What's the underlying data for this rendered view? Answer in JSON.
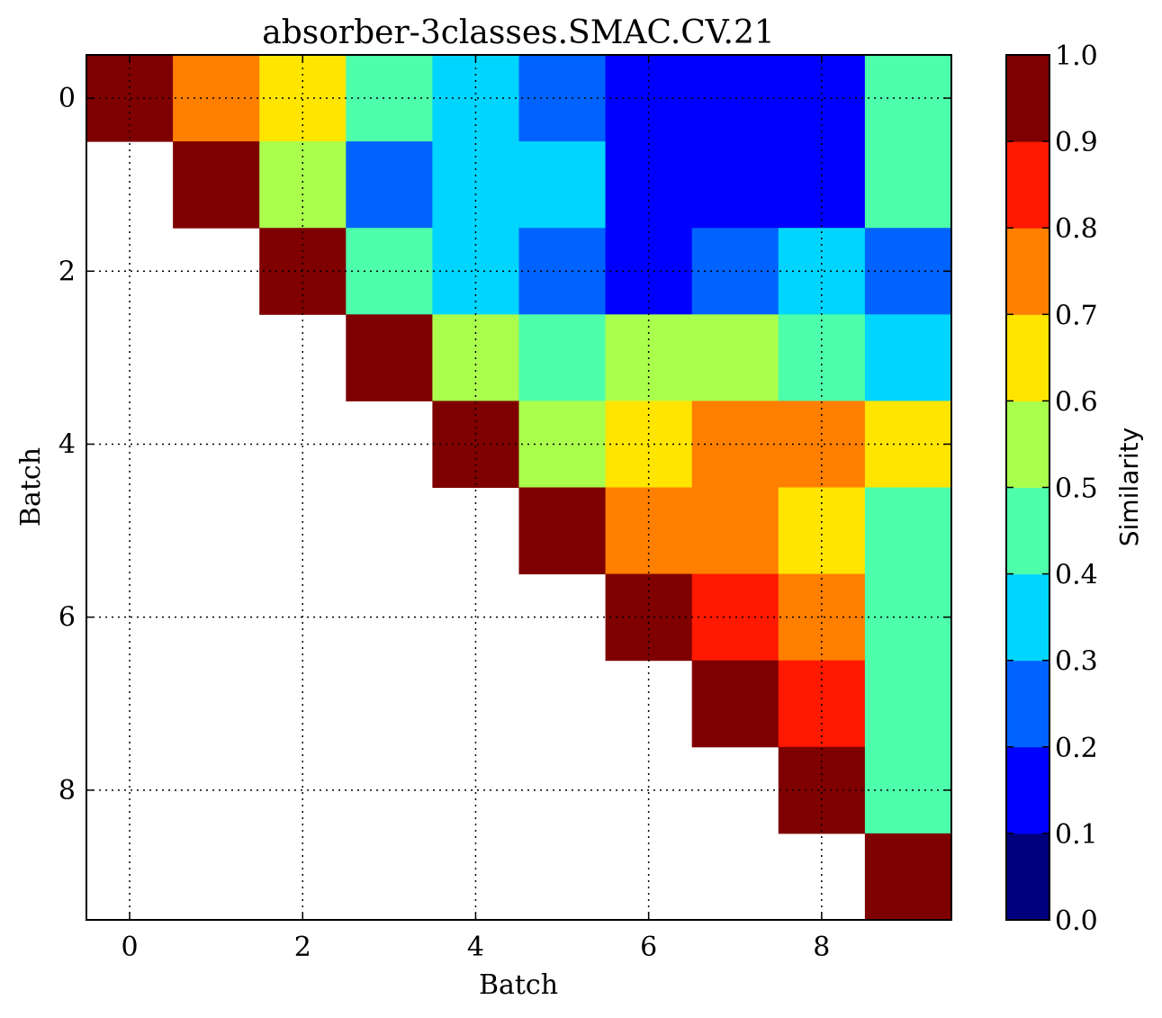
{
  "chart_data": {
    "type": "heatmap",
    "title": "absorber-3classes.SMAC.CV.21",
    "xlabel": "Batch",
    "ylabel": "Batch",
    "colorbar_label": "Similarity",
    "x_ticks": [
      "0",
      "2",
      "4",
      "6",
      "8"
    ],
    "y_ticks": [
      "0",
      "2",
      "4",
      "6",
      "8"
    ],
    "colorbar_ticks": [
      "0.0",
      "0.1",
      "0.2",
      "0.3",
      "0.4",
      "0.5",
      "0.6",
      "0.7",
      "0.8",
      "0.9",
      "1.0"
    ],
    "value_range": [
      0.0,
      1.0
    ],
    "grid": true,
    "colormap": "jet (10 discrete levels)",
    "colorbar_colors": [
      "#00007f",
      "#0000ff",
      "#0063ff",
      "#00d5ff",
      "#4dffaa",
      "#aaff4d",
      "#ffe500",
      "#ff7f00",
      "#ff1900",
      "#7f0000"
    ],
    "matrix": [
      [
        0.95,
        0.75,
        0.65,
        0.45,
        0.35,
        0.25,
        0.15,
        0.15,
        0.15,
        0.45
      ],
      [
        null,
        0.95,
        0.55,
        0.25,
        0.35,
        0.35,
        0.15,
        0.15,
        0.15,
        0.45
      ],
      [
        null,
        null,
        0.95,
        0.45,
        0.35,
        0.25,
        0.15,
        0.25,
        0.35,
        0.25
      ],
      [
        null,
        null,
        null,
        0.95,
        0.55,
        0.45,
        0.55,
        0.55,
        0.45,
        0.35
      ],
      [
        null,
        null,
        null,
        null,
        0.95,
        0.55,
        0.65,
        0.75,
        0.75,
        0.65
      ],
      [
        null,
        null,
        null,
        null,
        null,
        0.95,
        0.75,
        0.75,
        0.65,
        0.45
      ],
      [
        null,
        null,
        null,
        null,
        null,
        null,
        0.95,
        0.85,
        0.75,
        0.45
      ],
      [
        null,
        null,
        null,
        null,
        null,
        null,
        null,
        0.95,
        0.85,
        0.45
      ],
      [
        null,
        null,
        null,
        null,
        null,
        null,
        null,
        null,
        0.95,
        0.45
      ],
      [
        null,
        null,
        null,
        null,
        null,
        null,
        null,
        null,
        null,
        0.95
      ]
    ]
  }
}
